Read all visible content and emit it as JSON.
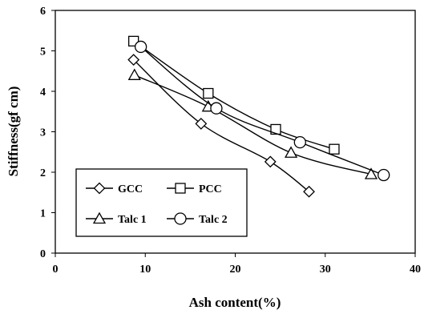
{
  "chart_data": {
    "type": "line",
    "title": "",
    "xlabel": "Ash content(%)",
    "ylabel": "Stiffness(gf cm)",
    "xlim": [
      0,
      40
    ],
    "ylim": [
      0,
      6
    ],
    "x_ticks": [
      "0",
      "10",
      "20",
      "30",
      "40"
    ],
    "y_ticks": [
      "0",
      "1",
      "2",
      "3",
      "4",
      "5",
      "6"
    ],
    "grid": false,
    "legend_position": "bottom-left",
    "series": [
      {
        "name": "GCC",
        "marker": "diamond",
        "x": [
          8.7,
          16.2,
          23.9,
          28.2
        ],
        "y": [
          4.78,
          3.2,
          2.26,
          1.52
        ]
      },
      {
        "name": "PCC",
        "marker": "square",
        "x": [
          8.7,
          17.0,
          24.5,
          31.0
        ],
        "y": [
          5.24,
          3.95,
          3.06,
          2.57
        ]
      },
      {
        "name": "Talc 1",
        "marker": "triangle",
        "x": [
          8.8,
          17.0,
          26.2,
          35.1
        ],
        "y": [
          4.4,
          3.62,
          2.48,
          1.95
        ]
      },
      {
        "name": "Talc 2",
        "marker": "circle",
        "x": [
          9.5,
          17.9,
          27.2,
          36.5
        ],
        "y": [
          5.1,
          3.58,
          2.74,
          1.93
        ]
      }
    ]
  }
}
